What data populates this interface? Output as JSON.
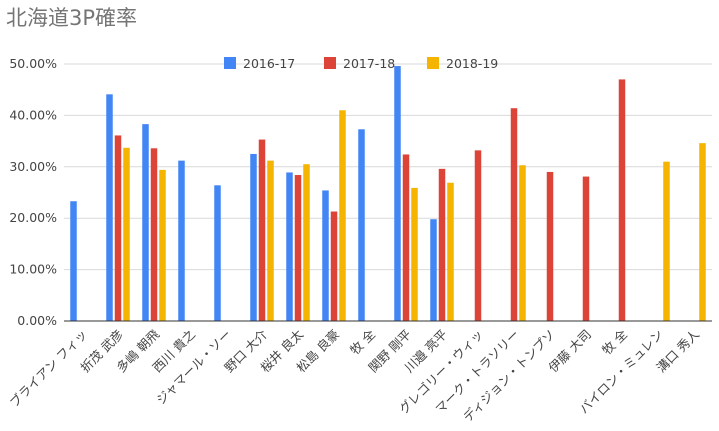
{
  "chart_data": {
    "type": "bar",
    "title": "北海道3P確率",
    "xlabel": "",
    "ylabel": "",
    "ylim": [
      0,
      50
    ],
    "yticks": [
      "0.00%",
      "10.00%",
      "20.00%",
      "30.00%",
      "40.00%",
      "50.00%"
    ],
    "grid": true,
    "legend_position": "top",
    "categories": [
      "ブライアン フィッ",
      "折茂 武彦",
      "多嶋 朝飛",
      "西川 貴之",
      "ジャマール・ソー",
      "野口 大介",
      "桜井 良太",
      "松島 良豪",
      "牧 全",
      "関野 剛平",
      "川邉 亮平",
      "グレゴリー・ウィッ",
      "マーク・トラソリー",
      "ディジョン・トンプソ",
      "伊藤 大司",
      "牧 全",
      "バイロン・ミュレン",
      "溝口 秀人"
    ],
    "series": [
      {
        "name": "2016-17",
        "color": "#4285f4",
        "values": [
          23.3,
          44.1,
          38.3,
          31.2,
          26.4,
          32.5,
          28.9,
          25.4,
          37.3,
          49.6,
          19.8,
          null,
          null,
          null,
          null,
          null,
          null,
          null
        ]
      },
      {
        "name": "2017-18",
        "color": "#db4437",
        "values": [
          null,
          36.1,
          33.6,
          null,
          null,
          35.3,
          28.4,
          21.3,
          null,
          32.4,
          29.6,
          33.2,
          41.4,
          29.0,
          28.1,
          47.0,
          null,
          null
        ]
      },
      {
        "name": "2018-19",
        "color": "#f4b400",
        "values": [
          null,
          33.7,
          29.4,
          null,
          null,
          31.2,
          30.5,
          41.0,
          null,
          25.9,
          26.9,
          null,
          30.3,
          null,
          null,
          null,
          31.0,
          34.6
        ]
      }
    ]
  }
}
